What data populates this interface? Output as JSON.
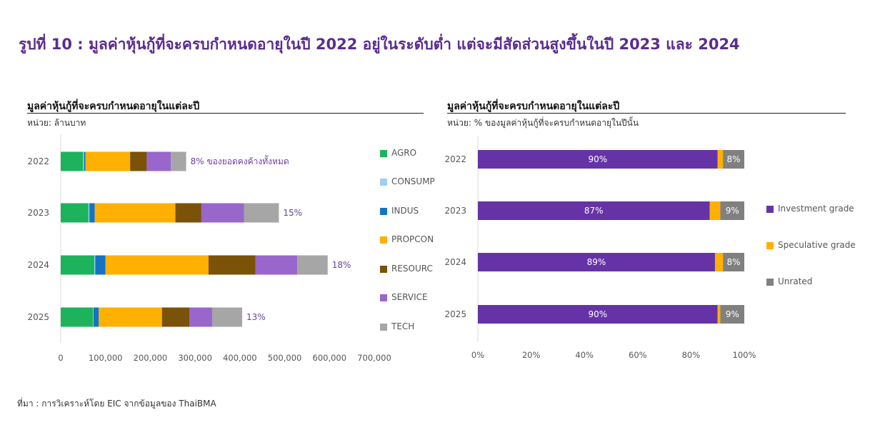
{
  "figure_title": "รูปที่ 10 : มูลค่าหุ้นกู้ที่จะครบกำหนดอายุในปี 2022 อยู่ในระดับต่ำ แต่จะมีสัดส่วนสูงขึ้นในปี 2023 และ 2024",
  "source": "ที่มา : การวิเคราะห์โดย EIC จากข้อมูลของ ThaiBMA",
  "left_panel": {
    "title": "มูลค่าหุ้นกู้ที่จะครบกำหนดอายุในแต่ละปี",
    "unit": "หน่วย: ล้านบาท"
  },
  "right_panel": {
    "title": "มูลค่าหุ้นกู้ที่จะครบกำหนดอายุในแต่ละปี",
    "unit": "หน่วย: % ของมูลค่าหุ้นกู้ที่จะครบกำหนดอายุในปีนั้น"
  },
  "chart_data": [
    {
      "type": "bar",
      "orientation": "horizontal",
      "stacked": true,
      "categories": [
        "2022",
        "2023",
        "2024",
        "2025"
      ],
      "series": [
        {
          "name": "AGRO",
          "color": "#1db35c",
          "values": [
            50000,
            62000,
            75000,
            72000
          ]
        },
        {
          "name": "CONSUMP",
          "color": "#9fcff5",
          "values": [
            2000,
            2000,
            2000,
            1000
          ]
        },
        {
          "name": "INDUS",
          "color": "#1473c4",
          "values": [
            3000,
            12000,
            23000,
            12000
          ]
        },
        {
          "name": "PROPCON",
          "color": "#ffb000",
          "values": [
            100000,
            180000,
            230000,
            141000
          ]
        },
        {
          "name": "RESOURC",
          "color": "#7a5208",
          "values": [
            37000,
            58000,
            105000,
            61000
          ]
        },
        {
          "name": "SERVICE",
          "color": "#9966cc",
          "values": [
            54000,
            95000,
            93000,
            51000
          ]
        },
        {
          "name": "TECH",
          "color": "#a6a6a6",
          "values": [
            34000,
            78000,
            68000,
            67000
          ]
        }
      ],
      "annotations": [
        "8% ของยอดคงค้างทั้งหมด",
        "15%",
        "18%",
        "13%"
      ],
      "xlim": [
        0,
        700000
      ],
      "xticks": [
        "0",
        "100,000",
        "200,000",
        "300,000",
        "400,000",
        "500,000",
        "600,000",
        "700,000"
      ],
      "legend_position": "right"
    },
    {
      "type": "bar",
      "orientation": "horizontal",
      "stacked": true,
      "categories": [
        "2022",
        "2023",
        "2024",
        "2025"
      ],
      "series": [
        {
          "name": "Investment grade",
          "color": "#6633a6",
          "values": [
            90,
            87,
            89,
            90
          ],
          "labels": [
            "90%",
            "87%",
            "89%",
            "90%"
          ]
        },
        {
          "name": "Speculative grade",
          "color": "#ffb000",
          "values": [
            2,
            4,
            3,
            1
          ],
          "labels": [
            "",
            "",
            "",
            ""
          ]
        },
        {
          "name": "Unrated",
          "color": "#808080",
          "values": [
            8,
            9,
            8,
            9
          ],
          "labels": [
            "8%",
            "9%",
            "8%",
            "9%"
          ]
        }
      ],
      "xlim": [
        0,
        100
      ],
      "xticks": [
        "0%",
        "20%",
        "40%",
        "60%",
        "80%",
        "100%"
      ],
      "legend_position": "right"
    }
  ]
}
